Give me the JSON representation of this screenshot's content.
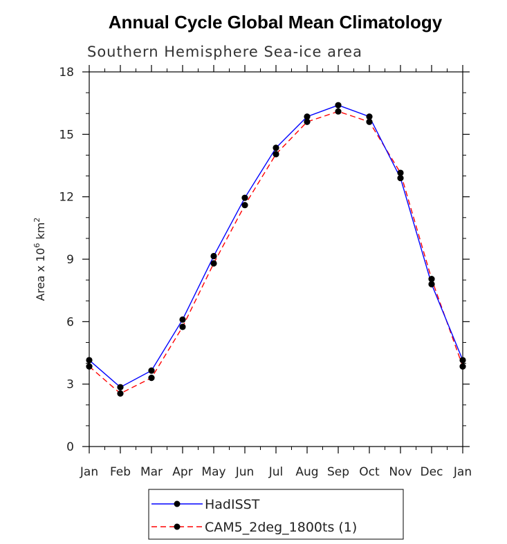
{
  "chart_data": {
    "type": "line",
    "title": "Annual Cycle Global Mean Climatology",
    "subtitle": "Southern Hemisphere Sea-ice area",
    "ylabel": "Area x 10",
    "ylabel_sup": "6",
    "ylabel_unit": "km",
    "ylabel_unit_sup": "2",
    "categories": [
      "Jan",
      "Feb",
      "Mar",
      "Apr",
      "May",
      "Jun",
      "Jul",
      "Aug",
      "Sep",
      "Oct",
      "Nov",
      "Dec",
      "Jan"
    ],
    "ylim": [
      0,
      18
    ],
    "yticks": [
      "0",
      "3",
      "6",
      "9",
      "12",
      "15",
      "18"
    ],
    "grid": false,
    "legend_position": "bottom-center",
    "series": [
      {
        "name": "HadISST",
        "color": "#0000ff",
        "style": "solid",
        "values": [
          4.15,
          2.85,
          3.65,
          6.1,
          9.15,
          11.95,
          14.35,
          15.85,
          16.4,
          15.85,
          12.9,
          7.8,
          4.15
        ]
      },
      {
        "name": "CAM5_2deg_1800ts (1)",
        "color": "#ff0000",
        "style": "dashed",
        "values": [
          3.85,
          2.55,
          3.3,
          5.75,
          8.8,
          11.6,
          14.05,
          15.6,
          16.1,
          15.6,
          13.15,
          8.05,
          3.85
        ]
      }
    ]
  }
}
